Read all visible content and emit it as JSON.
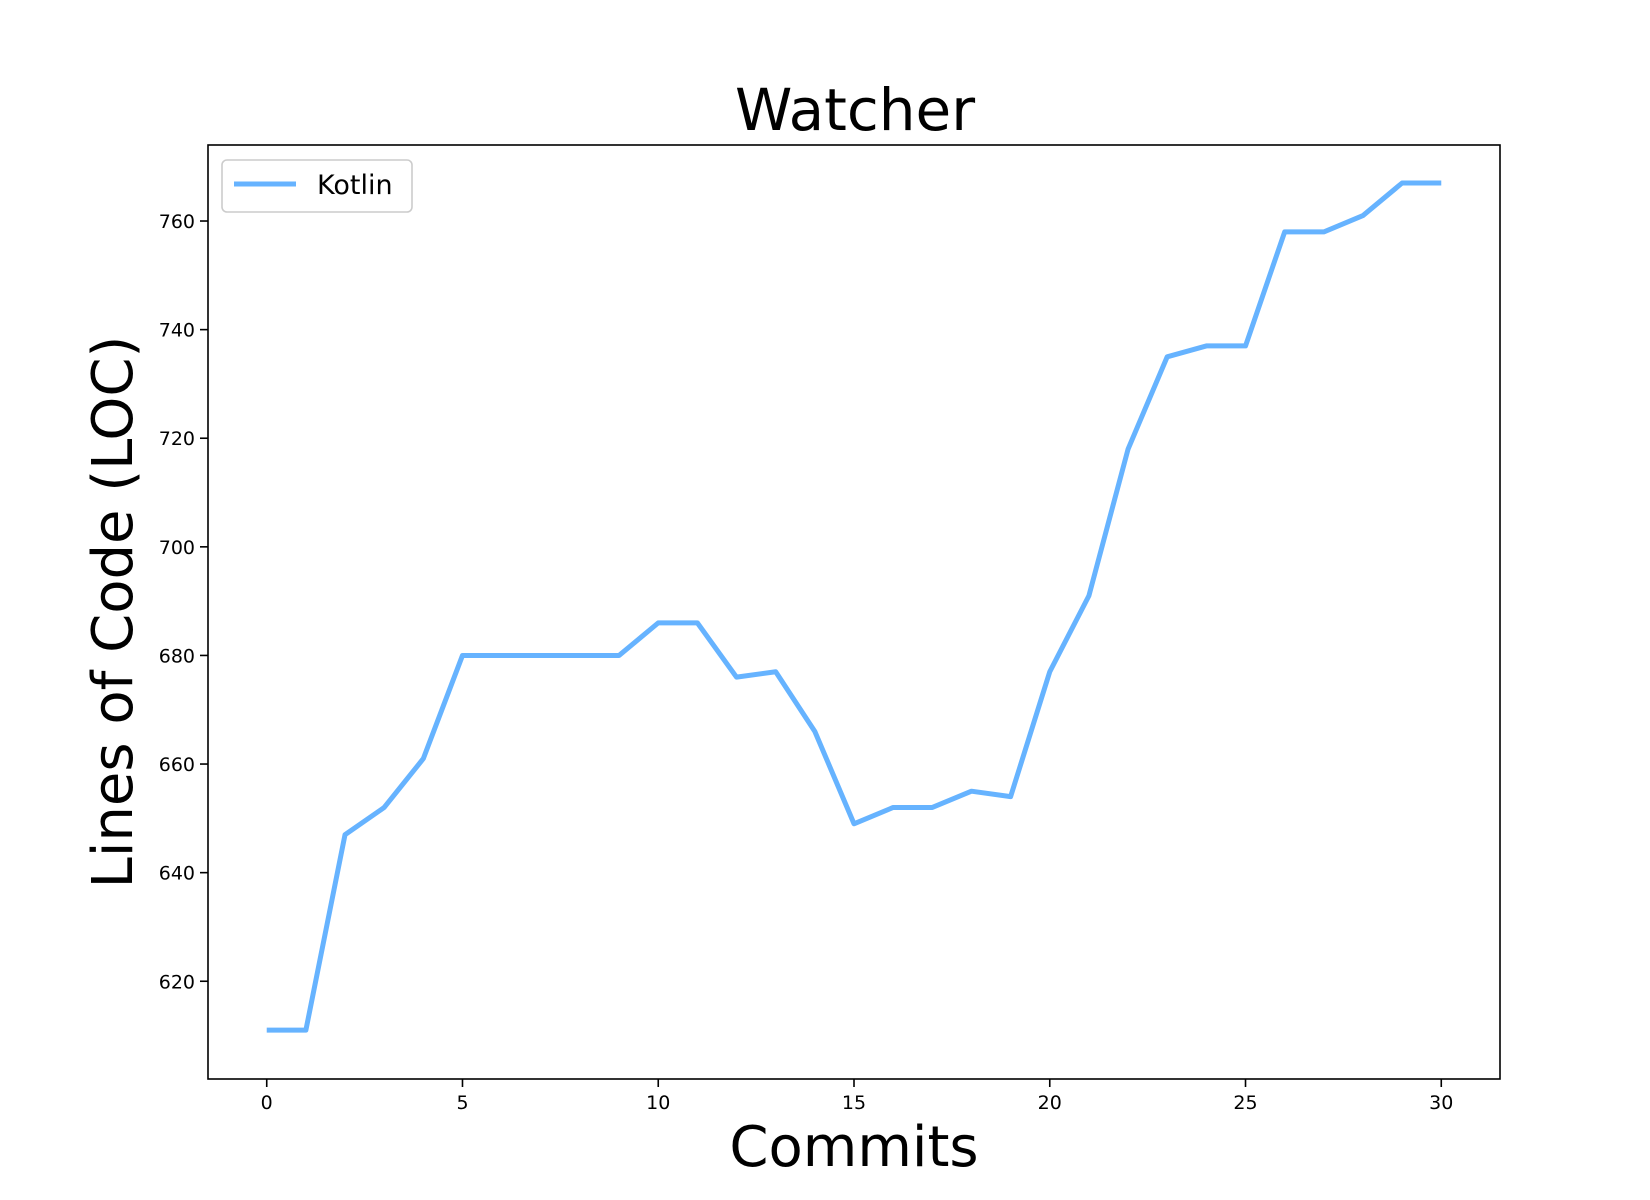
{
  "chart_data": {
    "type": "line",
    "title": "Watcher",
    "xlabel": "Commits",
    "ylabel": "Lines of Code (LOC)",
    "xlim": [
      -1.5,
      31.5
    ],
    "ylim": [
      602,
      774
    ],
    "x_ticks": [
      0,
      5,
      10,
      15,
      20,
      25,
      30
    ],
    "y_ticks": [
      620,
      640,
      660,
      680,
      700,
      720,
      740,
      760
    ],
    "grid": false,
    "legend_position": "top-left",
    "series": [
      {
        "name": "Kotlin",
        "color": "#66b3ff",
        "x": [
          0,
          1,
          2,
          3,
          4,
          5,
          6,
          7,
          8,
          9,
          10,
          11,
          12,
          13,
          14,
          15,
          16,
          17,
          18,
          19,
          20,
          21,
          22,
          23,
          24,
          25,
          26,
          27,
          28,
          29,
          30
        ],
        "values": [
          611,
          611,
          647,
          652,
          661,
          680,
          680,
          680,
          680,
          680,
          686,
          686,
          676,
          677,
          666,
          649,
          652,
          652,
          655,
          654,
          677,
          691,
          718,
          735,
          737,
          737,
          758,
          758,
          761,
          767,
          767
        ]
      }
    ]
  }
}
